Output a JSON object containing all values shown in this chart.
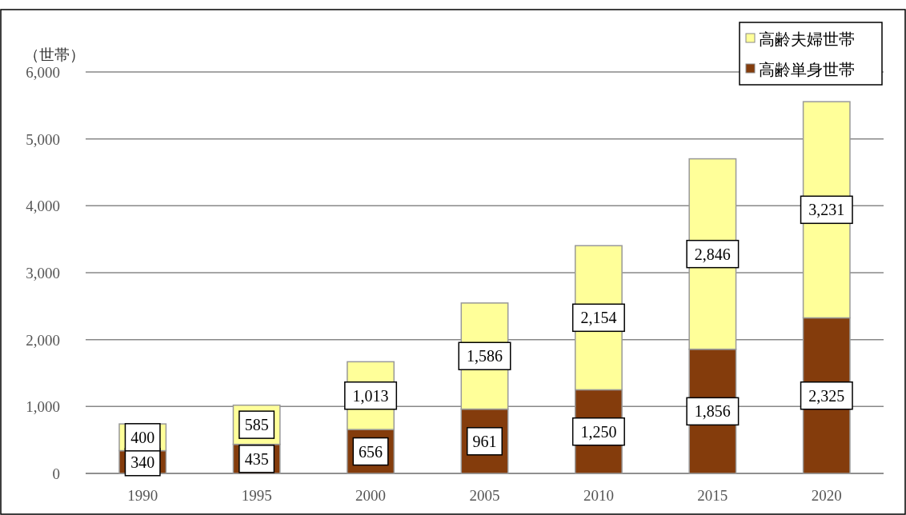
{
  "chart_data": {
    "type": "bar",
    "stacked": true,
    "ylabel": "（世帯）",
    "categories": [
      "1990",
      "1995",
      "2000",
      "2005",
      "2010",
      "2015",
      "2020"
    ],
    "series": [
      {
        "name": "高齢単身世帯",
        "color": "#843c0c",
        "values": [
          340,
          435,
          656,
          961,
          1250,
          1856,
          2325
        ],
        "value_labels": [
          "340",
          "435",
          "656",
          "961",
          "1,250",
          "1,856",
          "2,325"
        ]
      },
      {
        "name": "高齢夫婦世帯",
        "color": "#ffff99",
        "values": [
          400,
          585,
          1013,
          1586,
          2154,
          2846,
          3231
        ],
        "value_labels": [
          "400",
          "585",
          "1,013",
          "1,586",
          "2,154",
          "2,846",
          "3,231"
        ]
      }
    ],
    "ylim": [
      0,
      6000
    ],
    "yticks": [
      {
        "value": 0,
        "label": "0"
      },
      {
        "value": 1000,
        "label": "1,000"
      },
      {
        "value": 2000,
        "label": "2,000"
      },
      {
        "value": 3000,
        "label": "3,000"
      },
      {
        "value": 4000,
        "label": "4,000"
      },
      {
        "value": 5000,
        "label": "5,000"
      },
      {
        "value": 6000,
        "label": "6,000"
      }
    ],
    "grid": "y",
    "legend": "top right"
  }
}
